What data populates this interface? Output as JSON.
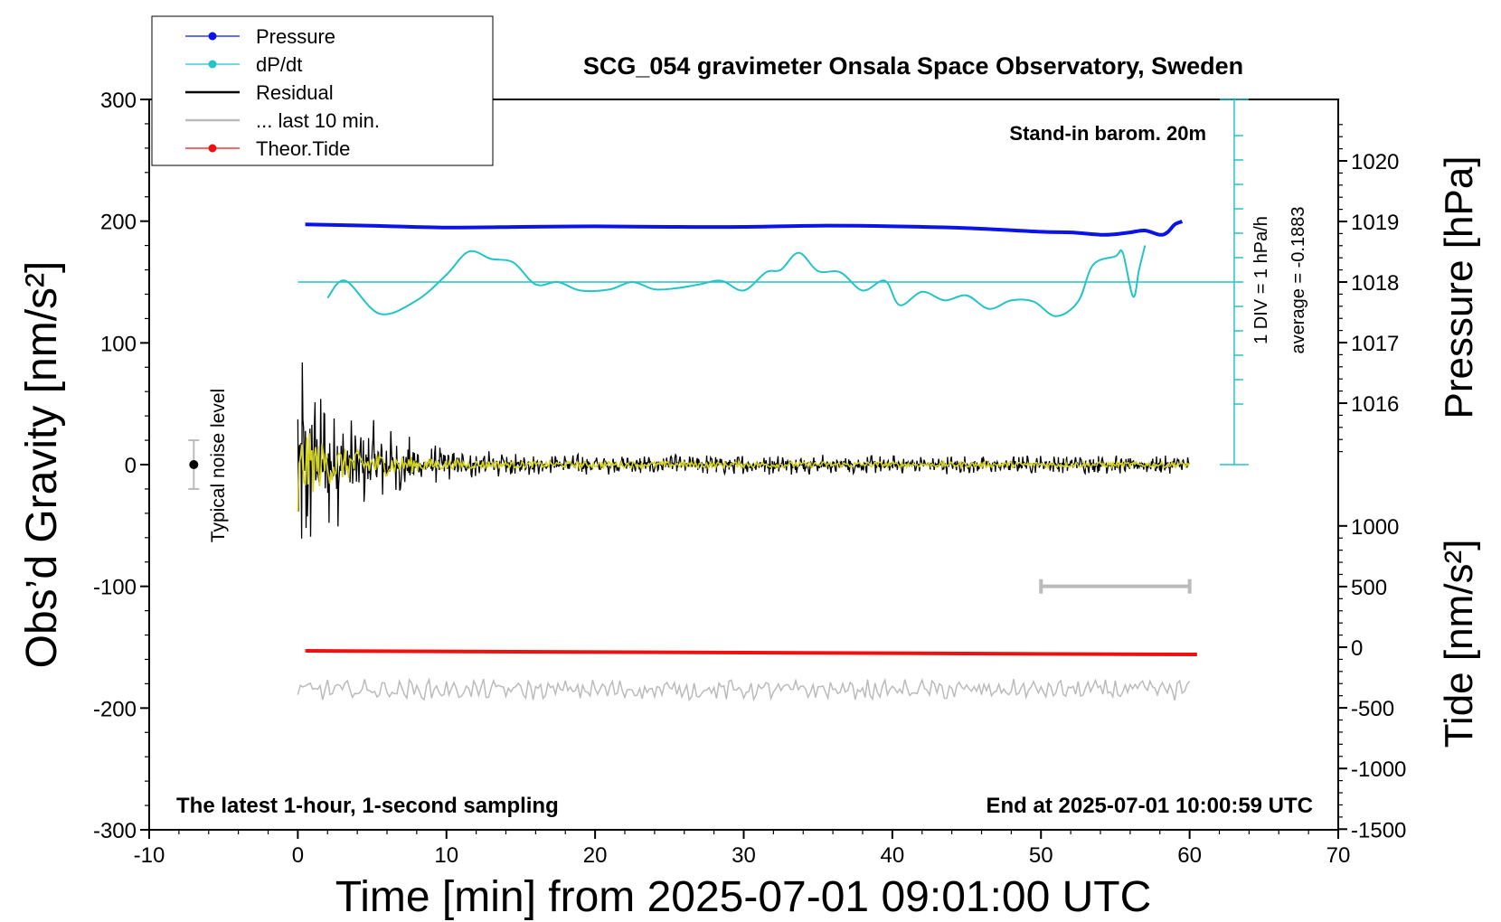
{
  "chart_data": {
    "type": "line",
    "title": "SCG_054 gravimeter Onsala Space Observatory, Sweden",
    "xlabel": "Time [min] from 2025-07-01 09:01:00 UTC",
    "ylabel_left": "Obs’d Gravity [nm/s²]",
    "ylabel_right_top": "Pressure [hPa]",
    "ylabel_right_bottom": "Tide [nm/s²]",
    "xlim": [
      -10,
      70
    ],
    "ylim": [
      -300,
      300
    ],
    "xticks": [
      "-10",
      "0",
      "10",
      "20",
      "30",
      "40",
      "50",
      "60",
      "70"
    ],
    "yticks_left": [
      "300",
      "200",
      "100",
      "0",
      "-100",
      "-200",
      "-300"
    ],
    "pressure_ticks": [
      "1020",
      "1019",
      "1018",
      "1017",
      "1016"
    ],
    "tide_ticks": [
      "1000",
      "500",
      "0",
      "-500",
      "-1000",
      "-1500"
    ],
    "annotations": {
      "barometer": "Stand-in barom. 20m",
      "bottom_left": "The latest 1-hour, 1-second sampling",
      "bottom_right": "End at 2025-07-01 10:00:59 UTC",
      "noise": "Typical noise level",
      "dpdt_scale": "1 DIV = 1 hPa/h",
      "dpdt_average": "average = -0.1883"
    },
    "legend": {
      "position": "top-left",
      "entries": [
        "Pressure",
        "dP/dt",
        "Residual",
        "... last 10 min.",
        "Theor.Tide"
      ]
    },
    "colors": {
      "pressure": "#0a14e6",
      "dpdt": "#22c4c8",
      "residual": "#000000",
      "residual_smooth": "#d4d41c",
      "last10": "#bbbbbb",
      "tide": "#ee1111"
    },
    "series": [
      {
        "name": "Pressure",
        "unit": "hPa",
        "x": [
          0.5,
          5,
          10,
          15,
          20,
          25,
          30,
          35,
          40,
          45,
          50,
          52,
          54,
          55,
          56,
          57,
          58,
          58.5,
          59,
          59.5
        ],
        "values": [
          1018.95,
          1018.93,
          1018.9,
          1018.91,
          1018.92,
          1018.91,
          1018.91,
          1018.93,
          1018.92,
          1018.89,
          1018.83,
          1018.82,
          1018.78,
          1018.79,
          1018.82,
          1018.85,
          1018.78,
          1018.82,
          1018.95,
          1019.0
        ]
      },
      {
        "name": "dP/dt",
        "unit": "hPa/h",
        "x": [
          2,
          3.2,
          5.5,
          8,
          10,
          11.5,
          13,
          14.5,
          16,
          17.5,
          19,
          21,
          22.5,
          24,
          25.5,
          27,
          28.5,
          30,
          31.5,
          32.5,
          33.7,
          35,
          36.5,
          38,
          39.5,
          40.5,
          42,
          43.5,
          45,
          46.5,
          48,
          49.5,
          51,
          52.5,
          53.5,
          55,
          55.5,
          56.2,
          56.6,
          57
        ],
        "values": [
          -0.65,
          0.05,
          -1.3,
          -0.75,
          0.3,
          1.25,
          0.95,
          0.8,
          -0.1,
          0.0,
          -0.35,
          -0.3,
          0.0,
          -0.3,
          -0.25,
          -0.1,
          0.05,
          -0.35,
          0.4,
          0.5,
          1.2,
          0.45,
          0.4,
          -0.35,
          0.05,
          -0.95,
          -0.4,
          -0.75,
          -0.55,
          -1.1,
          -0.75,
          -0.8,
          -1.4,
          -0.8,
          0.7,
          1.05,
          1.2,
          -0.6,
          0.5,
          1.5
        ]
      },
      {
        "name": "Residual",
        "unit": "nm/s²",
        "x_range": [
          0,
          60
        ],
        "envelope_x": [
          0,
          1,
          2,
          3,
          5,
          8,
          10,
          15,
          20,
          30,
          40,
          50,
          60
        ],
        "envelope_amplitude": [
          120,
          85,
          60,
          48,
          38,
          22,
          14,
          10,
          9,
          9,
          8,
          8,
          8
        ]
      },
      {
        "name": "Theor.Tide",
        "unit": "nm/s²",
        "x": [
          0.5,
          60.5
        ],
        "values": [
          -30,
          -60
        ]
      }
    ],
    "typical_noise": {
      "x": -7,
      "center": 0,
      "half_range": 20
    },
    "scale_bar": {
      "x": [
        50,
        60
      ],
      "y": -100
    }
  }
}
